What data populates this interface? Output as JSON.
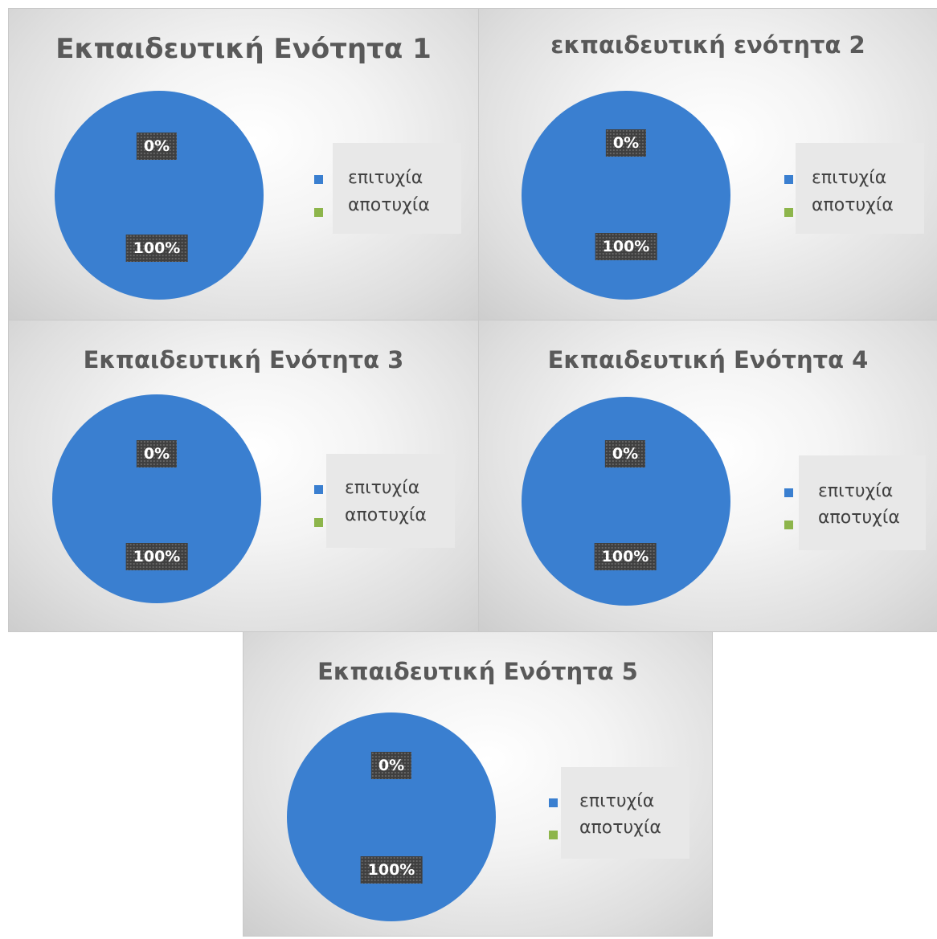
{
  "colors": {
    "success": "#3a7fd0",
    "failure": "#8db54b"
  },
  "chart_data": [
    {
      "type": "pie",
      "title": "Εκπαιδευτική Ενότητα 1",
      "categories": [
        "επιτυχία",
        "αποτυχία"
      ],
      "values": [
        100,
        0
      ],
      "data_labels": [
        "100%",
        "0%"
      ],
      "legend": "right"
    },
    {
      "type": "pie",
      "title": "εκπαιδευτική ενότητα 2",
      "categories": [
        "επιτυχία",
        "αποτυχία"
      ],
      "values": [
        100,
        0
      ],
      "data_labels": [
        "100%",
        "0%"
      ],
      "legend": "right"
    },
    {
      "type": "pie",
      "title": "Εκπαιδευτική Ενότητα 3",
      "categories": [
        "επιτυχία",
        "αποτυχία"
      ],
      "values": [
        100,
        0
      ],
      "data_labels": [
        "100%",
        "0%"
      ],
      "legend": "right"
    },
    {
      "type": "pie",
      "title": "Εκπαιδευτική Ενότητα 4",
      "categories": [
        "επιτυχία",
        "αποτυχία"
      ],
      "values": [
        100,
        0
      ],
      "data_labels": [
        "100%",
        "0%"
      ],
      "legend": "right"
    },
    {
      "type": "pie",
      "title": "Εκπαιδευτική Ενότητα 5",
      "categories": [
        "επιτυχία",
        "αποτυχία"
      ],
      "values": [
        100,
        0
      ],
      "data_labels": [
        "100%",
        "0%"
      ],
      "legend": "right"
    }
  ]
}
